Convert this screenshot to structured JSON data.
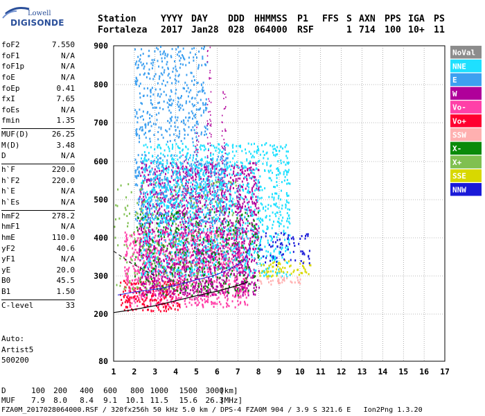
{
  "logo": {
    "line1": "Lowell",
    "line2": "DIGISONDE"
  },
  "header": {
    "cols": [
      {
        "label": "Station",
        "value": "Fortaleza"
      },
      {
        "label": "YYYY",
        "value": "2017"
      },
      {
        "label": "DAY",
        "value": "Jan28"
      },
      {
        "label": "DDD",
        "value": "028"
      },
      {
        "label": "HHMMSS",
        "value": "064000"
      },
      {
        "label": "P1",
        "value": "RSF"
      },
      {
        "label": "FFS",
        "value": ""
      },
      {
        "label": "S",
        "value": "1"
      },
      {
        "label": "AXN",
        "value": "714"
      },
      {
        "label": "PPS",
        "value": "100"
      },
      {
        "label": "IGA",
        "value": "10+"
      },
      {
        "label": "PS",
        "value": "11"
      }
    ]
  },
  "params": {
    "group1": [
      {
        "name": "foF2",
        "value": "7.550"
      },
      {
        "name": "foF1",
        "value": "N/A"
      },
      {
        "name": "foF1p",
        "value": "N/A"
      },
      {
        "name": "foE",
        "value": "N/A"
      },
      {
        "name": "foEp",
        "value": "0.41"
      },
      {
        "name": "fxI",
        "value": "7.65"
      },
      {
        "name": "foEs",
        "value": "N/A"
      },
      {
        "name": "fmin",
        "value": "1.35"
      }
    ],
    "group2": [
      {
        "name": "MUF(D)",
        "value": "26.25"
      },
      {
        "name": "M(D)",
        "value": "3.48"
      },
      {
        "name": "D",
        "value": "N/A"
      }
    ],
    "group3": [
      {
        "name": "h`F",
        "value": "220.0"
      },
      {
        "name": "h`F2",
        "value": "220.0"
      },
      {
        "name": "h`E",
        "value": "N/A"
      },
      {
        "name": "h`Es",
        "value": "N/A"
      }
    ],
    "group4": [
      {
        "name": "hmF2",
        "value": "278.2"
      },
      {
        "name": "hmF1",
        "value": "N/A"
      },
      {
        "name": "hmE",
        "value": "110.0"
      },
      {
        "name": "yF2",
        "value": "40.6"
      },
      {
        "name": "yF1",
        "value": "N/A"
      },
      {
        "name": "yE",
        "value": "20.0"
      },
      {
        "name": "B0",
        "value": "45.5"
      },
      {
        "name": "B1",
        "value": "1.50"
      }
    ],
    "group5": [
      {
        "name": "C-level",
        "value": "33"
      }
    ]
  },
  "auto": {
    "line1": "Auto:",
    "line2": "Artist5",
    "line3": "500200"
  },
  "legend": [
    {
      "label": "NoVal",
      "bg": "#8c8c8c",
      "fg": "#ffffff"
    },
    {
      "label": "NNE",
      "bg": "#1ee0ff",
      "fg": "#ffffff"
    },
    {
      "label": "E",
      "bg": "#3ea0f0",
      "fg": "#ffffff"
    },
    {
      "label": "W",
      "bg": "#b0009a",
      "fg": "#ffffff"
    },
    {
      "label": "Vo-",
      "bg": "#ff40a8",
      "fg": "#ffffff"
    },
    {
      "label": "Vo+",
      "bg": "#ff0030",
      "fg": "#ffffff"
    },
    {
      "label": "SSW",
      "bg": "#ffb0b0",
      "fg": "#ffffff"
    },
    {
      "label": "X-",
      "bg": "#0a8a0a",
      "fg": "#ffffff"
    },
    {
      "label": "X+",
      "bg": "#80c050",
      "fg": "#ffffff"
    },
    {
      "label": "SSE",
      "bg": "#d8d800",
      "fg": "#ffffff"
    },
    {
      "label": "NNW",
      "bg": "#1a1ad8",
      "fg": "#ffffff"
    }
  ],
  "bottom": {
    "d_label": "D",
    "d_values": [
      "100",
      "200",
      "400",
      "600",
      "800",
      "1000",
      "1500",
      "3000"
    ],
    "d_unit": "[km]",
    "muf_label": "MUF",
    "muf_values": [
      "7.9",
      "8.0",
      "8.4",
      "9.1",
      "10.1",
      "11.5",
      "15.6",
      "26.3"
    ],
    "muf_unit": "[MHz]",
    "footer": "FZA0M_2017028064000.RSF / 320fx256h 50 kHz 5.0 km / DPS-4 FZA0M 904 / 3.9 S 321.6 E   Ion2Png 1.3.20"
  },
  "chart_data": {
    "type": "scatter",
    "title": "",
    "xlabel": "",
    "ylabel": "",
    "xlim": [
      1,
      17
    ],
    "ylim": [
      80,
      900
    ],
    "x_ticks": [
      1,
      2,
      3,
      4,
      5,
      6,
      7,
      8,
      9,
      10,
      11,
      12,
      13,
      14,
      15,
      16,
      17
    ],
    "y_ticks": [
      80,
      200,
      300,
      400,
      500,
      600,
      700,
      800,
      900
    ],
    "grid": true,
    "x_scale": "linear",
    "y_scale": "nonlinear",
    "legend_placement": "right",
    "profile_solid": {
      "x": [
        1.0,
        2.0,
        3.0,
        4.0,
        5.0,
        6.0,
        7.0,
        7.5
      ],
      "y": [
        204,
        212,
        222,
        235,
        248,
        260,
        275,
        285
      ]
    },
    "profile_dashed": {
      "x": [
        1.0,
        1.8,
        2.5,
        3.0
      ],
      "y": [
        365,
        335,
        315,
        300
      ]
    },
    "trace_line": {
      "x": [
        1.2,
        2.0,
        3.0,
        4.0,
        5.0,
        5.8,
        6.5,
        7.3,
        7.6
      ],
      "y": [
        250,
        258,
        265,
        275,
        290,
        300,
        315,
        340,
        380
      ]
    },
    "clusters": [
      {
        "series": "Vo-",
        "x": [
          1.5,
          7.5
        ],
        "y": [
          220,
          420
        ],
        "density": 0.9
      },
      {
        "series": "Vo+",
        "x": [
          1.3,
          4.2
        ],
        "y": [
          210,
          290
        ],
        "density": 0.8
      },
      {
        "series": "W",
        "x": [
          2.2,
          8.0
        ],
        "y": [
          250,
          600
        ],
        "density": 0.8
      },
      {
        "series": "E",
        "x": [
          2.0,
          6.5
        ],
        "y": [
          440,
          620
        ],
        "density": 0.6
      },
      {
        "series": "NNE",
        "x": [
          2.3,
          9.5
        ],
        "y": [
          300,
          650
        ],
        "density": 0.6
      },
      {
        "series": "E",
        "x": [
          2.0,
          5.5
        ],
        "y": [
          650,
          900
        ],
        "density": 0.5
      },
      {
        "series": "SSW",
        "x": [
          8.0,
          10.0
        ],
        "y": [
          280,
          300
        ],
        "density": 0.9
      },
      {
        "series": "SSE",
        "x": [
          8.0,
          10.5
        ],
        "y": [
          300,
          345
        ],
        "density": 0.6
      },
      {
        "series": "X-",
        "x": [
          2.0,
          8.0
        ],
        "y": [
          250,
          470
        ],
        "density": 0.25
      },
      {
        "series": "X+",
        "x": [
          1.0,
          7.0
        ],
        "y": [
          260,
          550
        ],
        "density": 0.15
      },
      {
        "series": "NNW",
        "x": [
          8.0,
          10.5
        ],
        "y": [
          330,
          420
        ],
        "density": 0.35
      }
    ]
  }
}
